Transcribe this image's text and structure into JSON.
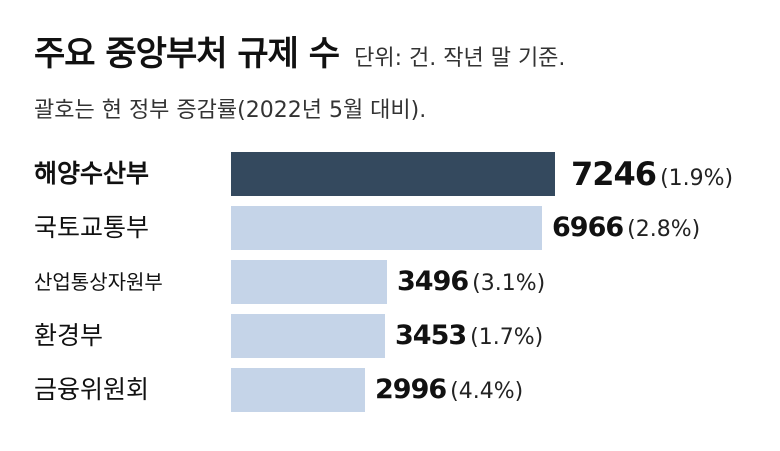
{
  "chart_data": {
    "type": "bar",
    "orientation": "horizontal",
    "title": "주요 중앙부처 규제 수",
    "unit_note": "단위: 건. 작년 말 기준.",
    "subtitle": "괄호는 현 정부 증감률(2022년 5월 대비).",
    "categories": [
      "해양수산부",
      "국토교통부",
      "산업통상자원부",
      "환경부",
      "금융위원회"
    ],
    "values": [
      7246,
      6966,
      3496,
      3453,
      2996
    ],
    "change_labels": [
      "(1.9%)",
      "(2.8%)",
      "(3.1%)",
      "(1.7%)",
      "(4.4%)"
    ],
    "highlight_index": 0,
    "xlim": [
      0,
      7246
    ],
    "colors": {
      "highlight": "#34495e",
      "default": "#c5d4e8"
    }
  }
}
